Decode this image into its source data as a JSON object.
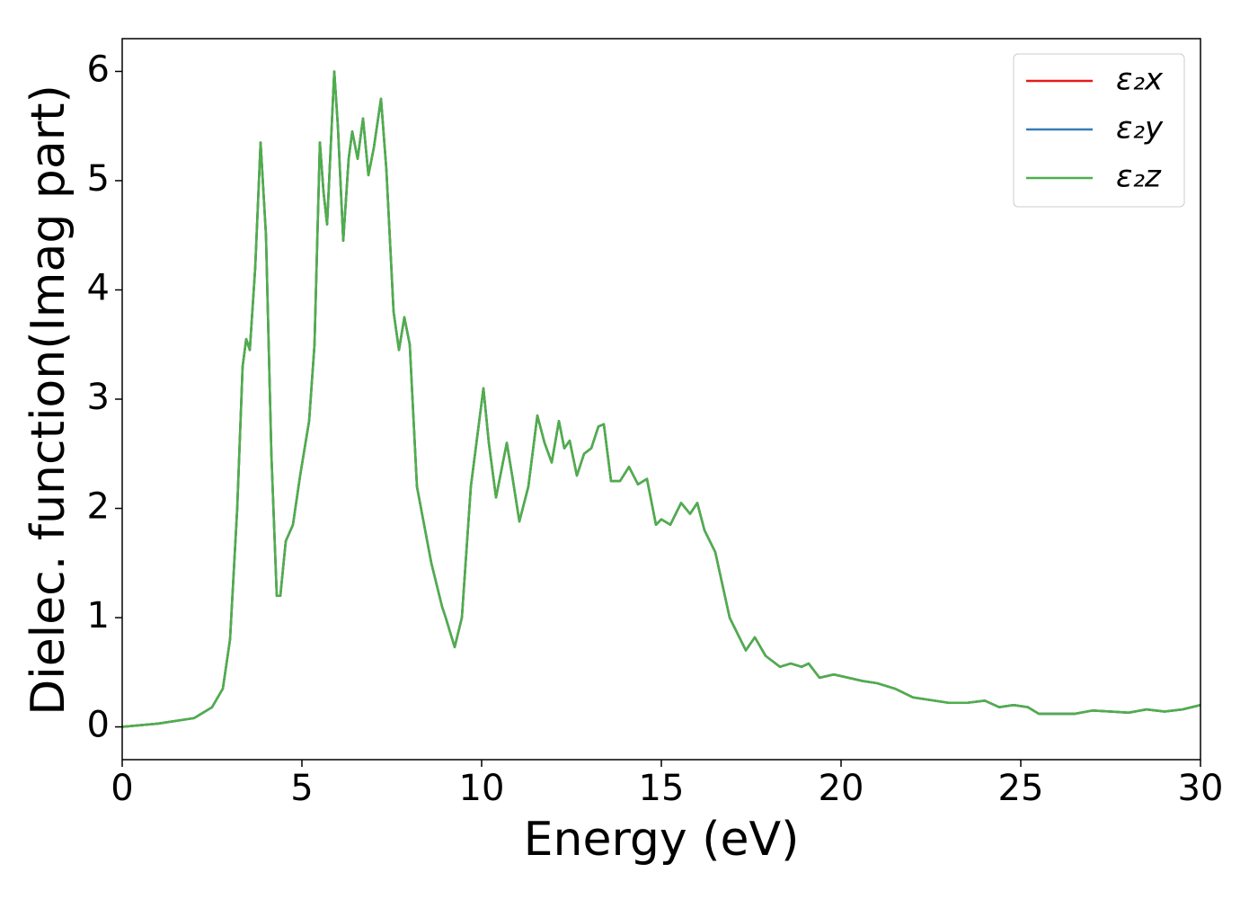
{
  "chart_data": {
    "type": "line",
    "xlabel": "Energy (eV)",
    "ylabel": "Dielec. function(Imag part)",
    "x": [
      0,
      1,
      2,
      2.5,
      2.8,
      3.0,
      3.2,
      3.35,
      3.45,
      3.55,
      3.7,
      3.85,
      4.0,
      4.15,
      4.3,
      4.4,
      4.55,
      4.75,
      4.95,
      5.2,
      5.35,
      5.5,
      5.6,
      5.7,
      5.9,
      6.0,
      6.15,
      6.3,
      6.4,
      6.55,
      6.7,
      6.85,
      7.0,
      7.2,
      7.35,
      7.55,
      7.7,
      7.85,
      8.0,
      8.2,
      8.6,
      8.9,
      9.0,
      9.25,
      9.45,
      9.7,
      10.05,
      10.2,
      10.4,
      10.7,
      10.85,
      11.05,
      11.3,
      11.55,
      11.75,
      11.95,
      12.15,
      12.3,
      12.45,
      12.65,
      12.85,
      13.05,
      13.25,
      13.4,
      13.6,
      13.85,
      14.1,
      14.35,
      14.6,
      14.85,
      15.0,
      15.25,
      15.55,
      15.8,
      16.0,
      16.2,
      16.5,
      16.9,
      17.2,
      17.35,
      17.6,
      17.9,
      18.3,
      18.6,
      18.9,
      19.1,
      19.4,
      19.8,
      20.2,
      20.6,
      21.0,
      21.5,
      22,
      23,
      23.5,
      24,
      24.4,
      24.8,
      25.2,
      25.5,
      26,
      26.5,
      27,
      27.5,
      28,
      28.5,
      29,
      29.5,
      30
    ],
    "series": [
      {
        "name": "ε₂x",
        "color": "#e41a1c",
        "values": [
          0,
          0.03,
          0.08,
          0.18,
          0.35,
          0.8,
          2.0,
          3.3,
          3.55,
          3.45,
          4.2,
          5.35,
          4.5,
          2.5,
          1.2,
          1.2,
          1.7,
          1.85,
          2.3,
          2.8,
          3.5,
          5.35,
          4.9,
          4.6,
          6.0,
          5.5,
          4.45,
          5.2,
          5.45,
          5.2,
          5.57,
          5.05,
          5.3,
          5.75,
          5.1,
          3.8,
          3.45,
          3.75,
          3.5,
          2.2,
          1.5,
          1.1,
          1.0,
          0.73,
          1.0,
          2.2,
          3.1,
          2.6,
          2.1,
          2.6,
          2.3,
          1.88,
          2.2,
          2.85,
          2.6,
          2.42,
          2.8,
          2.55,
          2.62,
          2.3,
          2.5,
          2.55,
          2.75,
          2.77,
          2.25,
          2.25,
          2.38,
          2.22,
          2.27,
          1.85,
          1.9,
          1.85,
          2.05,
          1.95,
          2.05,
          1.8,
          1.6,
          1.0,
          0.8,
          0.7,
          0.82,
          0.65,
          0.55,
          0.58,
          0.55,
          0.58,
          0.45,
          0.48,
          0.45,
          0.42,
          0.4,
          0.35,
          0.27,
          0.22,
          0.22,
          0.24,
          0.18,
          0.2,
          0.18,
          0.12,
          0.12,
          0.12,
          0.15,
          0.14,
          0.13,
          0.16,
          0.14,
          0.16,
          0.2
        ]
      },
      {
        "name": "ε₂y",
        "color": "#377eb8",
        "values": [
          0,
          0.03,
          0.08,
          0.18,
          0.35,
          0.8,
          2.0,
          3.3,
          3.55,
          3.45,
          4.2,
          5.35,
          4.5,
          2.5,
          1.2,
          1.2,
          1.7,
          1.85,
          2.3,
          2.8,
          3.5,
          5.35,
          4.9,
          4.6,
          6.0,
          5.5,
          4.45,
          5.2,
          5.45,
          5.2,
          5.57,
          5.05,
          5.3,
          5.75,
          5.1,
          3.8,
          3.45,
          3.75,
          3.5,
          2.2,
          1.5,
          1.1,
          1.0,
          0.73,
          1.0,
          2.2,
          3.1,
          2.6,
          2.1,
          2.6,
          2.3,
          1.88,
          2.2,
          2.85,
          2.6,
          2.42,
          2.8,
          2.55,
          2.62,
          2.3,
          2.5,
          2.55,
          2.75,
          2.77,
          2.25,
          2.25,
          2.38,
          2.22,
          2.27,
          1.85,
          1.9,
          1.85,
          2.05,
          1.95,
          2.05,
          1.8,
          1.6,
          1.0,
          0.8,
          0.7,
          0.82,
          0.65,
          0.55,
          0.58,
          0.55,
          0.58,
          0.45,
          0.48,
          0.45,
          0.42,
          0.4,
          0.35,
          0.27,
          0.22,
          0.22,
          0.24,
          0.18,
          0.2,
          0.18,
          0.12,
          0.12,
          0.12,
          0.15,
          0.14,
          0.13,
          0.16,
          0.14,
          0.16,
          0.2
        ]
      },
      {
        "name": "ε₂z",
        "color": "#4daf4a",
        "values": [
          0,
          0.03,
          0.08,
          0.18,
          0.35,
          0.8,
          2.0,
          3.3,
          3.55,
          3.45,
          4.2,
          5.35,
          4.5,
          2.5,
          1.2,
          1.2,
          1.7,
          1.85,
          2.3,
          2.8,
          3.5,
          5.35,
          4.9,
          4.6,
          6.0,
          5.5,
          4.45,
          5.2,
          5.45,
          5.2,
          5.57,
          5.05,
          5.3,
          5.75,
          5.1,
          3.8,
          3.45,
          3.75,
          3.5,
          2.2,
          1.5,
          1.1,
          1.0,
          0.73,
          1.0,
          2.2,
          3.1,
          2.6,
          2.1,
          2.6,
          2.3,
          1.88,
          2.2,
          2.85,
          2.6,
          2.42,
          2.8,
          2.55,
          2.62,
          2.3,
          2.5,
          2.55,
          2.75,
          2.77,
          2.25,
          2.25,
          2.38,
          2.22,
          2.27,
          1.85,
          1.9,
          1.85,
          2.05,
          1.95,
          2.05,
          1.8,
          1.6,
          1.0,
          0.8,
          0.7,
          0.82,
          0.65,
          0.55,
          0.58,
          0.55,
          0.58,
          0.45,
          0.48,
          0.45,
          0.42,
          0.4,
          0.35,
          0.27,
          0.22,
          0.22,
          0.24,
          0.18,
          0.2,
          0.18,
          0.12,
          0.12,
          0.12,
          0.15,
          0.14,
          0.13,
          0.16,
          0.14,
          0.16,
          0.2
        ]
      }
    ],
    "xlim": [
      0,
      30
    ],
    "xticks": [
      0,
      5,
      10,
      15,
      20,
      25,
      30
    ],
    "ylim": [
      -0.3,
      6.3
    ],
    "yticks": [
      0,
      1,
      2,
      3,
      4,
      5,
      6
    ],
    "grid": false,
    "legend": "upper right"
  }
}
